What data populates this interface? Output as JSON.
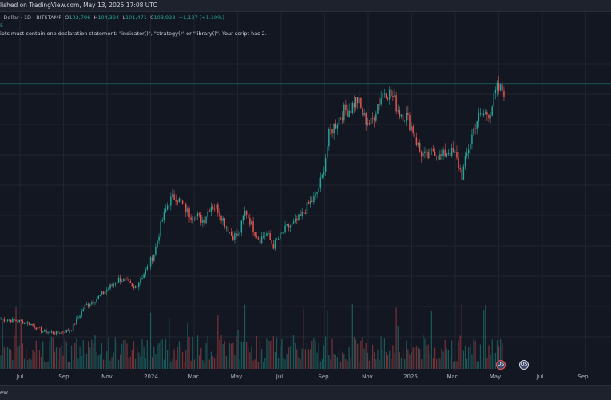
{
  "header": {
    "publish_text": "lished on TradingView.com, May 13, 2025 17:08 UTC"
  },
  "legend": {
    "symbol_text": "- Dollar · 1D · BITSTAMP",
    "o_label": "O",
    "o_value": "102,796",
    "h_label": "H",
    "h_value": "104,394",
    "l_label": "L",
    "l_value": "101,471",
    "c_label": "C",
    "c_value": "103,923",
    "change": "+1,127 (+1.10%)",
    "indicator_value": "5"
  },
  "error_message": "ipts must contain one declaration statement: \"indicator()\", \"strategy()\" or \"library()\". Your script has 2.",
  "x_axis": {
    "labels": [
      "Jul",
      "Sep",
      "Nov",
      "2024",
      "Mar",
      "May",
      "Jul",
      "Sep",
      "Nov",
      "2025",
      "Mar",
      "May",
      "Jul",
      "Sep"
    ]
  },
  "flags": {
    "badge1": "US",
    "badge2": "US"
  },
  "footer": {
    "text": "ew"
  },
  "colors": {
    "up": "#26a69a",
    "down": "#ef5350",
    "background": "#131722",
    "grid": "#1f2430"
  },
  "chart_data": {
    "type": "candlestick",
    "anchors": [
      [
        0,
        30500
      ],
      [
        2,
        30000
      ],
      [
        4,
        29200
      ],
      [
        6,
        26500
      ],
      [
        8,
        26000
      ],
      [
        10,
        27000
      ],
      [
        12,
        34500
      ],
      [
        14,
        37500
      ],
      [
        16,
        41500
      ],
      [
        17,
        43500
      ],
      [
        18,
        42500
      ],
      [
        19,
        40000
      ],
      [
        20,
        43500
      ],
      [
        21,
        47000
      ],
      [
        22,
        52000
      ],
      [
        23,
        61500
      ],
      [
        24,
        68000
      ],
      [
        25,
        70000
      ],
      [
        26,
        67000
      ],
      [
        27,
        64000
      ],
      [
        28,
        63500
      ],
      [
        29,
        62000
      ],
      [
        30,
        67000
      ],
      [
        31,
        66000
      ],
      [
        32,
        61500
      ],
      [
        33,
        57500
      ],
      [
        34,
        57000
      ],
      [
        35,
        65500
      ],
      [
        36,
        60000
      ],
      [
        37,
        56000
      ],
      [
        38,
        58000
      ],
      [
        39,
        54000
      ],
      [
        40,
        57000
      ],
      [
        41,
        60000
      ],
      [
        42,
        61000
      ],
      [
        43,
        63500
      ],
      [
        44,
        67000
      ],
      [
        45,
        69500
      ],
      [
        46,
        76000
      ],
      [
        47,
        90000
      ],
      [
        48,
        93500
      ],
      [
        49,
        97000
      ],
      [
        50,
        98000
      ],
      [
        51,
        101000
      ],
      [
        52,
        95000
      ],
      [
        53,
        93000
      ],
      [
        54,
        100000
      ],
      [
        55,
        104000
      ],
      [
        56,
        102000
      ],
      [
        57,
        97000
      ],
      [
        58,
        95500
      ],
      [
        59,
        91000
      ],
      [
        60,
        84000
      ],
      [
        61,
        82000
      ],
      [
        62,
        85000
      ],
      [
        63,
        82000
      ],
      [
        64,
        84500
      ],
      [
        65,
        83000
      ],
      [
        66,
        76500
      ],
      [
        67,
        86000
      ],
      [
        68,
        94000
      ],
      [
        69,
        96000
      ],
      [
        70,
        97000
      ],
      [
        71,
        104000
      ],
      [
        72,
        103900
      ]
    ],
    "x_range": [
      0,
      72
    ],
    "y_range": [
      15000,
      120000
    ],
    "current_price": 103923
  }
}
